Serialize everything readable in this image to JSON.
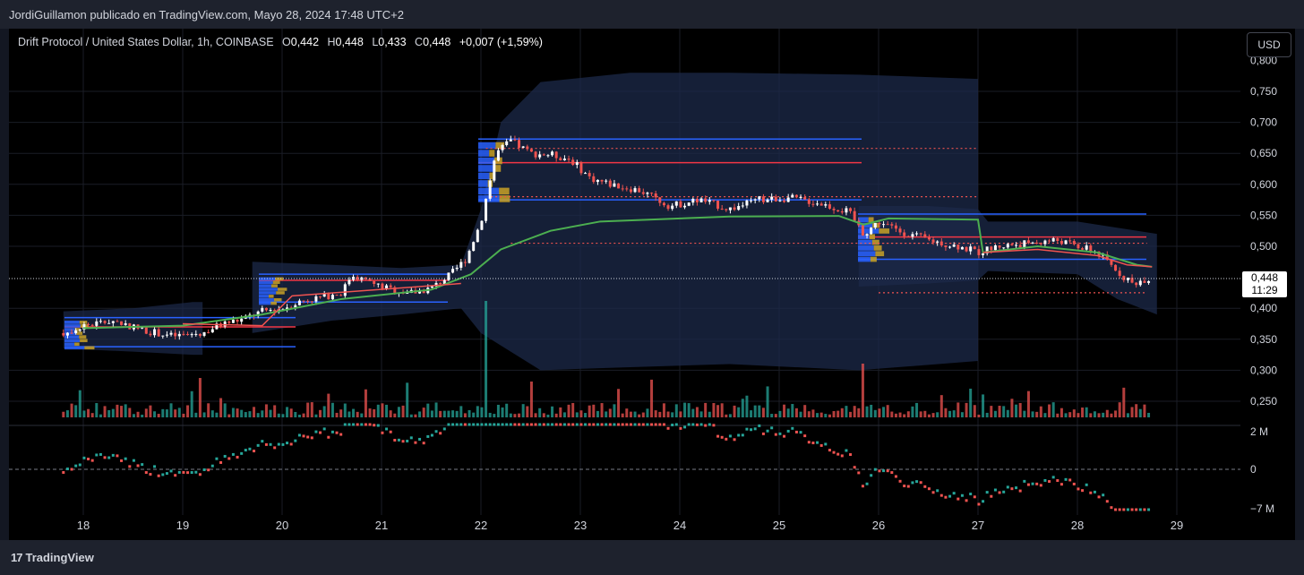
{
  "header": {
    "published": "JordiGuillamon publicado en TradingView.com, Mayo 28, 2024 17:48 UTC+2"
  },
  "legend": {
    "symbol": "Drift Protocol / United States Dollar, 1h, COINBASE",
    "o_label": "O",
    "o_value": "0,442",
    "h_label": "H",
    "h_value": "0,448",
    "l_label": "L",
    "l_value": "0,433",
    "c_label": "C",
    "c_value": "0,448",
    "change": "+0,007 (+1,59%)"
  },
  "currency_button": "USD",
  "last_price": {
    "value": "0,448",
    "countdown": "11:29"
  },
  "footer": {
    "brand": "TradingView",
    "brand_mark": "17"
  },
  "colors": {
    "up": "#26a69a",
    "down": "#ef5350",
    "vwap": "#4caf50",
    "poc": "#f23645",
    "profile_line": "#2962ff",
    "band_fill": "#1c2a4a"
  },
  "chart_data": {
    "type": "candlestick",
    "x_ticks": [
      "18",
      "19",
      "20",
      "21",
      "22",
      "23",
      "24",
      "25",
      "26",
      "27",
      "28",
      "29"
    ],
    "price_axis": {
      "ticks": [
        "0,800",
        "0,750",
        "0,700",
        "0,650",
        "0,600",
        "0,550",
        "0,500",
        "0,400",
        "0,350",
        "0,300",
        "0,250"
      ],
      "ylim": [
        0.225,
        0.81
      ]
    },
    "volume_oscillator_axis": {
      "ticks": [
        "2 M",
        "0",
        "−7 M"
      ]
    },
    "last_close": 0.448,
    "close_path": [
      [
        17.8,
        0.36
      ],
      [
        18.0,
        0.372
      ],
      [
        18.3,
        0.38
      ],
      [
        18.6,
        0.365
      ],
      [
        18.9,
        0.355
      ],
      [
        19.2,
        0.36
      ],
      [
        19.4,
        0.375
      ],
      [
        19.6,
        0.382
      ],
      [
        19.8,
        0.395
      ],
      [
        20.0,
        0.4
      ],
      [
        20.2,
        0.412
      ],
      [
        20.4,
        0.418
      ],
      [
        20.6,
        0.425
      ],
      [
        20.7,
        0.455
      ],
      [
        20.9,
        0.44
      ],
      [
        21.1,
        0.43
      ],
      [
        21.3,
        0.425
      ],
      [
        21.5,
        0.432
      ],
      [
        21.7,
        0.455
      ],
      [
        21.85,
        0.48
      ],
      [
        22.0,
        0.54
      ],
      [
        22.15,
        0.65
      ],
      [
        22.3,
        0.67
      ],
      [
        22.5,
        0.65
      ],
      [
        22.7,
        0.648
      ],
      [
        22.9,
        0.64
      ],
      [
        23.1,
        0.61
      ],
      [
        23.3,
        0.6
      ],
      [
        23.6,
        0.59
      ],
      [
        23.9,
        0.565
      ],
      [
        24.2,
        0.575
      ],
      [
        24.5,
        0.56
      ],
      [
        24.8,
        0.575
      ],
      [
        25.1,
        0.578
      ],
      [
        25.4,
        0.57
      ],
      [
        25.7,
        0.555
      ],
      [
        25.85,
        0.52
      ],
      [
        26.0,
        0.54
      ],
      [
        26.2,
        0.525
      ],
      [
        26.5,
        0.51
      ],
      [
        26.8,
        0.5
      ],
      [
        27.0,
        0.49
      ],
      [
        27.2,
        0.5
      ],
      [
        27.5,
        0.505
      ],
      [
        27.8,
        0.51
      ],
      [
        28.0,
        0.5
      ],
      [
        28.2,
        0.49
      ],
      [
        28.4,
        0.46
      ],
      [
        28.55,
        0.44
      ],
      [
        28.7,
        0.448
      ]
    ],
    "vwap_path": [
      [
        18.0,
        0.368
      ],
      [
        19.0,
        0.372
      ],
      [
        19.8,
        0.39
      ],
      [
        20.6,
        0.415
      ],
      [
        21.5,
        0.43
      ],
      [
        21.9,
        0.455
      ],
      [
        22.2,
        0.495
      ],
      [
        22.7,
        0.525
      ],
      [
        23.2,
        0.54
      ],
      [
        24.5,
        0.548
      ],
      [
        25.6,
        0.549
      ],
      [
        25.85,
        0.535
      ],
      [
        26.1,
        0.545
      ],
      [
        27.0,
        0.543
      ],
      [
        27.05,
        0.49
      ],
      [
        27.6,
        0.5
      ],
      [
        28.2,
        0.49
      ],
      [
        28.6,
        0.47
      ],
      [
        28.75,
        0.467
      ]
    ]
  }
}
